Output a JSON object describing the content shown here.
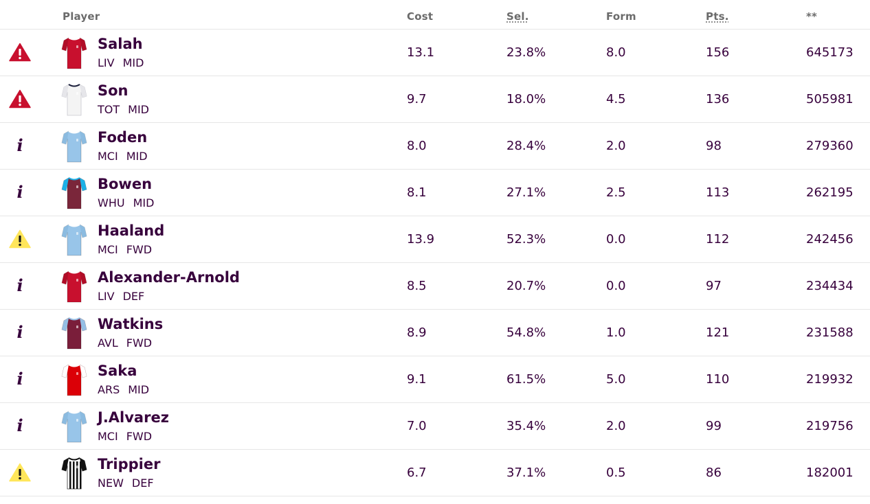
{
  "header": {
    "player": "Player",
    "cost": "Cost",
    "sel": "Sel.",
    "form": "Form",
    "pts": "Pts.",
    "stat": "**"
  },
  "colors": {
    "text": "#37003c",
    "header_text": "#6b6b6b",
    "divider": "#e6e6e6",
    "status_injured": "#c8102e",
    "status_doubt": "#ffe65b"
  },
  "players": [
    {
      "name": "Salah",
      "team": "LIV",
      "pos": "MID",
      "cost": "13.1",
      "sel": "23.8%",
      "form": "8.0",
      "pts": "156",
      "stat": "645173",
      "status_icon": "warning-red-icon",
      "kit": "liverpool-shirt-icon"
    },
    {
      "name": "Son",
      "team": "TOT",
      "pos": "MID",
      "cost": "9.7",
      "sel": "18.0%",
      "form": "4.5",
      "pts": "136",
      "stat": "505981",
      "status_icon": "warning-red-icon",
      "kit": "tottenham-shirt-icon"
    },
    {
      "name": "Foden",
      "team": "MCI",
      "pos": "MID",
      "cost": "8.0",
      "sel": "28.4%",
      "form": "2.0",
      "pts": "98",
      "stat": "279360",
      "status_icon": "info-icon",
      "kit": "man-city-shirt-icon"
    },
    {
      "name": "Bowen",
      "team": "WHU",
      "pos": "MID",
      "cost": "8.1",
      "sel": "27.1%",
      "form": "2.5",
      "pts": "113",
      "stat": "262195",
      "status_icon": "info-icon",
      "kit": "west-ham-shirt-icon"
    },
    {
      "name": "Haaland",
      "team": "MCI",
      "pos": "FWD",
      "cost": "13.9",
      "sel": "52.3%",
      "form": "0.0",
      "pts": "112",
      "stat": "242456",
      "status_icon": "warning-yellow-icon",
      "kit": "man-city-shirt-icon"
    },
    {
      "name": "Alexander-Arnold",
      "team": "LIV",
      "pos": "DEF",
      "cost": "8.5",
      "sel": "20.7%",
      "form": "0.0",
      "pts": "97",
      "stat": "234434",
      "status_icon": "info-icon",
      "kit": "liverpool-shirt-icon"
    },
    {
      "name": "Watkins",
      "team": "AVL",
      "pos": "FWD",
      "cost": "8.9",
      "sel": "54.8%",
      "form": "1.0",
      "pts": "121",
      "stat": "231588",
      "status_icon": "info-icon",
      "kit": "aston-villa-shirt-icon"
    },
    {
      "name": "Saka",
      "team": "ARS",
      "pos": "MID",
      "cost": "9.1",
      "sel": "61.5%",
      "form": "5.0",
      "pts": "110",
      "stat": "219932",
      "status_icon": "info-icon",
      "kit": "arsenal-shirt-icon"
    },
    {
      "name": "J.Alvarez",
      "team": "MCI",
      "pos": "FWD",
      "cost": "7.0",
      "sel": "35.4%",
      "form": "2.0",
      "pts": "99",
      "stat": "219756",
      "status_icon": "info-icon",
      "kit": "man-city-shirt-icon"
    },
    {
      "name": "Trippier",
      "team": "NEW",
      "pos": "DEF",
      "cost": "6.7",
      "sel": "37.1%",
      "form": "0.5",
      "pts": "86",
      "stat": "182001",
      "status_icon": "warning-yellow-icon",
      "kit": "newcastle-shirt-icon"
    }
  ]
}
